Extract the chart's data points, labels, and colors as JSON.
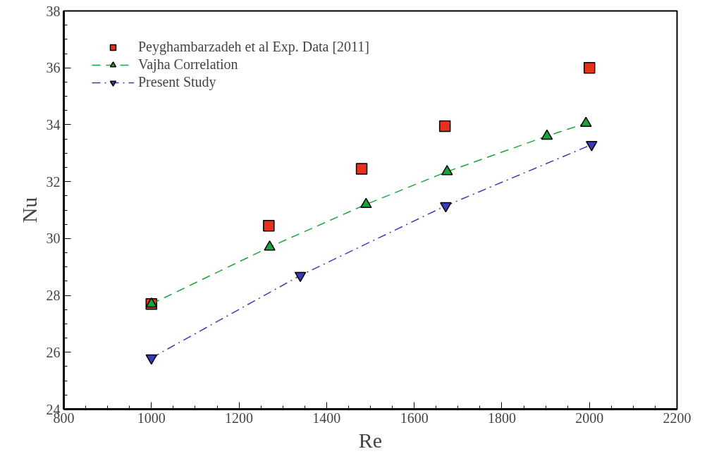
{
  "chart_data": {
    "type": "scatter",
    "xlabel": "Re",
    "ylabel": "Nu",
    "xlim": [
      800,
      2200
    ],
    "xticks": [
      800,
      1000,
      1200,
      1400,
      1600,
      1800,
      2000,
      2200
    ],
    "ylim": [
      24,
      38
    ],
    "yticks": [
      24,
      26,
      28,
      30,
      32,
      34,
      36,
      38
    ],
    "grid": false,
    "legend": "top left",
    "series": [
      {
        "name": "Peyghambarzadeh et al Exp. Data [2011]",
        "marker": "square",
        "color": "#e8311c",
        "x": [
          1000,
          1268,
          1480,
          1670,
          2000
        ],
        "values": [
          27.7,
          30.45,
          32.45,
          33.95,
          36.0
        ]
      },
      {
        "name": "Vajha Correlation",
        "type": "line",
        "marker": "triangle",
        "line_style": "dashed",
        "color": "#1aa33a",
        "x": [
          1000,
          1270,
          1490,
          1675,
          1903,
          1992
        ],
        "values": [
          27.7,
          29.7,
          31.2,
          32.35,
          33.6,
          34.05
        ]
      },
      {
        "name": "Present Study",
        "type": "line",
        "marker": "triangle",
        "line_style": "dashdot",
        "color": "#3a3ab8",
        "x": [
          1000,
          1340,
          1672,
          2005
        ],
        "values": [
          25.8,
          28.7,
          31.15,
          33.3
        ]
      }
    ]
  }
}
